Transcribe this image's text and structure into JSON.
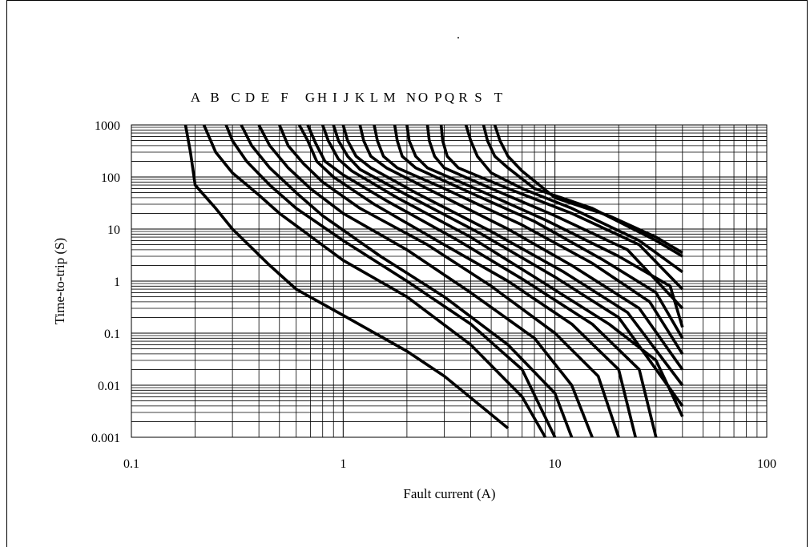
{
  "chart_data": {
    "type": "line",
    "title": ".",
    "xlabel": "Fault current (A)",
    "ylabel": "Time-to-trip (S)",
    "xscale": "log",
    "yscale": "log",
    "xlim": [
      0.1,
      100
    ],
    "ylim": [
      0.001,
      1000
    ],
    "xticks": [
      "0.1",
      "1",
      "10",
      "100"
    ],
    "yticks": [
      "0.001",
      "0.01",
      "0.1",
      "1",
      "10",
      "100",
      "1000"
    ],
    "grid": true,
    "curve_labels": [
      "A",
      "B",
      "C",
      "D",
      "E",
      "F",
      "G",
      "H",
      "I",
      "J",
      "K",
      "L",
      "M",
      "N",
      "O",
      "P",
      "Q",
      "R",
      "S",
      "T"
    ],
    "series": [
      {
        "label": "A",
        "points": [
          [
            0.18,
            1000
          ],
          [
            0.19,
            300
          ],
          [
            0.2,
            70
          ],
          [
            0.25,
            25
          ],
          [
            0.3,
            10
          ],
          [
            0.45,
            2
          ],
          [
            0.6,
            0.7
          ],
          [
            1.0,
            0.22
          ],
          [
            2.0,
            0.045
          ],
          [
            3.0,
            0.015
          ],
          [
            6.0,
            0.0015
          ]
        ]
      },
      {
        "label": "B",
        "points": [
          [
            0.22,
            1000
          ],
          [
            0.25,
            300
          ],
          [
            0.3,
            120
          ],
          [
            0.4,
            45
          ],
          [
            0.5,
            20
          ],
          [
            1.0,
            2.5
          ],
          [
            2.0,
            0.5
          ],
          [
            4.0,
            0.06
          ],
          [
            7.0,
            0.006
          ],
          [
            9.0,
            0.001
          ]
        ]
      },
      {
        "label": "C",
        "points": [
          [
            0.28,
            1000
          ],
          [
            0.3,
            500
          ],
          [
            0.35,
            200
          ],
          [
            0.45,
            70
          ],
          [
            0.6,
            25
          ],
          [
            1.0,
            6
          ],
          [
            2.0,
            1
          ],
          [
            4.0,
            0.15
          ],
          [
            7.0,
            0.02
          ],
          [
            10.0,
            0.001
          ]
        ]
      },
      {
        "label": "D",
        "points": [
          [
            0.33,
            1000
          ],
          [
            0.37,
            400
          ],
          [
            0.45,
            150
          ],
          [
            0.6,
            50
          ],
          [
            0.8,
            18
          ],
          [
            1.5,
            3
          ],
          [
            3.0,
            0.5
          ],
          [
            6.0,
            0.06
          ],
          [
            10.0,
            0.007
          ],
          [
            12.0,
            0.001
          ]
        ]
      },
      {
        "label": "E",
        "points": [
          [
            0.4,
            1000
          ],
          [
            0.45,
            400
          ],
          [
            0.55,
            150
          ],
          [
            0.7,
            60
          ],
          [
            1.0,
            20
          ],
          [
            2.0,
            4
          ],
          [
            4.0,
            0.6
          ],
          [
            8.0,
            0.08
          ],
          [
            12.0,
            0.01
          ],
          [
            15.0,
            0.001
          ]
        ]
      },
      {
        "label": "F",
        "points": [
          [
            0.5,
            1000
          ],
          [
            0.55,
            400
          ],
          [
            0.65,
            180
          ],
          [
            0.8,
            80
          ],
          [
            1.2,
            25
          ],
          [
            2.5,
            5
          ],
          [
            5.0,
            0.8
          ],
          [
            10.0,
            0.1
          ],
          [
            16.0,
            0.015
          ],
          [
            20.0,
            0.001
          ]
        ]
      },
      {
        "label": "G",
        "points": [
          [
            0.62,
            1000
          ],
          [
            0.68,
            500
          ],
          [
            0.75,
            200
          ],
          [
            0.9,
            100
          ],
          [
            1.4,
            30
          ],
          [
            3.0,
            5
          ],
          [
            6.0,
            1
          ],
          [
            12.0,
            0.15
          ],
          [
            20.0,
            0.02
          ],
          [
            24.0,
            0.001
          ]
        ]
      },
      {
        "label": "H",
        "points": [
          [
            0.68,
            1000
          ],
          [
            0.74,
            450
          ],
          [
            0.82,
            200
          ],
          [
            1.0,
            110
          ],
          [
            1.6,
            35
          ],
          [
            3.5,
            6
          ],
          [
            7.0,
            1.1
          ],
          [
            15.0,
            0.15
          ],
          [
            25.0,
            0.02
          ],
          [
            30.0,
            0.001
          ]
        ]
      },
      {
        "label": "I",
        "points": [
          [
            0.8,
            1000
          ],
          [
            0.85,
            500
          ],
          [
            0.95,
            220
          ],
          [
            1.1,
            130
          ],
          [
            1.8,
            40
          ],
          [
            4.0,
            7
          ],
          [
            8.0,
            1.2
          ],
          [
            18.0,
            0.15
          ],
          [
            30.0,
            0.03
          ],
          [
            40.0,
            0.0025
          ]
        ]
      },
      {
        "label": "J",
        "points": [
          [
            0.9,
            1000
          ],
          [
            0.95,
            500
          ],
          [
            1.05,
            250
          ],
          [
            1.2,
            140
          ],
          [
            2.0,
            45
          ],
          [
            4.5,
            8
          ],
          [
            10.0,
            1.2
          ],
          [
            20.0,
            0.2
          ],
          [
            40.0,
            0.004
          ]
        ]
      },
      {
        "label": "K",
        "points": [
          [
            1.0,
            1000
          ],
          [
            1.05,
            500
          ],
          [
            1.15,
            250
          ],
          [
            1.35,
            150
          ],
          [
            2.2,
            50
          ],
          [
            5.0,
            9
          ],
          [
            11.0,
            1.5
          ],
          [
            22.0,
            0.25
          ],
          [
            40.0,
            0.01
          ]
        ]
      },
      {
        "label": "L",
        "points": [
          [
            1.2,
            1000
          ],
          [
            1.25,
            500
          ],
          [
            1.35,
            250
          ],
          [
            1.6,
            150
          ],
          [
            2.6,
            55
          ],
          [
            6.0,
            10
          ],
          [
            12.0,
            2
          ],
          [
            25.0,
            0.3
          ],
          [
            40.0,
            0.02
          ]
        ]
      },
      {
        "label": "M",
        "points": [
          [
            1.4,
            1000
          ],
          [
            1.45,
            500
          ],
          [
            1.55,
            250
          ],
          [
            1.8,
            150
          ],
          [
            3.0,
            60
          ],
          [
            7.0,
            12
          ],
          [
            15.0,
            2.2
          ],
          [
            28.0,
            0.4
          ],
          [
            40.0,
            0.04
          ]
        ]
      },
      {
        "label": "N",
        "points": [
          [
            1.75,
            1000
          ],
          [
            1.8,
            500
          ],
          [
            1.9,
            250
          ],
          [
            2.2,
            150
          ],
          [
            3.6,
            60
          ],
          [
            8.0,
            14
          ],
          [
            17.0,
            2.5
          ],
          [
            30.0,
            0.6
          ],
          [
            40.0,
            0.08
          ]
        ]
      },
      {
        "label": "O",
        "points": [
          [
            2.0,
            1000
          ],
          [
            2.05,
            500
          ],
          [
            2.2,
            250
          ],
          [
            2.5,
            150
          ],
          [
            4.2,
            60
          ],
          [
            9.0,
            15
          ],
          [
            20.0,
            3
          ],
          [
            35.0,
            0.8
          ],
          [
            40.0,
            0.13
          ]
        ]
      },
      {
        "label": "P",
        "points": [
          [
            2.5,
            1000
          ],
          [
            2.55,
            500
          ],
          [
            2.7,
            250
          ],
          [
            3.0,
            150
          ],
          [
            5.0,
            60
          ],
          [
            10.0,
            18
          ],
          [
            22.0,
            4
          ],
          [
            40.0,
            0.3
          ]
        ]
      },
      {
        "label": "Q",
        "points": [
          [
            2.9,
            1000
          ],
          [
            2.95,
            500
          ],
          [
            3.1,
            250
          ],
          [
            3.5,
            150
          ],
          [
            6.0,
            60
          ],
          [
            12.0,
            20
          ],
          [
            25.0,
            5
          ],
          [
            40.0,
            0.7
          ]
        ]
      },
      {
        "label": "R",
        "points": [
          [
            3.8,
            1000
          ],
          [
            4.0,
            500
          ],
          [
            4.3,
            250
          ],
          [
            5.0,
            120
          ],
          [
            7.0,
            60
          ],
          [
            12.0,
            25
          ],
          [
            25.0,
            6
          ],
          [
            40.0,
            1.5
          ]
        ]
      },
      {
        "label": "S",
        "points": [
          [
            4.6,
            1000
          ],
          [
            4.8,
            500
          ],
          [
            5.2,
            250
          ],
          [
            6.0,
            150
          ],
          [
            8.0,
            60
          ],
          [
            15.0,
            25
          ],
          [
            30.0,
            6
          ],
          [
            40.0,
            3
          ]
        ]
      },
      {
        "label": "T",
        "points": [
          [
            5.2,
            1000
          ],
          [
            5.5,
            500
          ],
          [
            6.0,
            250
          ],
          [
            7.0,
            130
          ],
          [
            10.0,
            40
          ],
          [
            18.0,
            18
          ],
          [
            30.0,
            7
          ],
          [
            40.0,
            3.5
          ]
        ]
      }
    ]
  }
}
